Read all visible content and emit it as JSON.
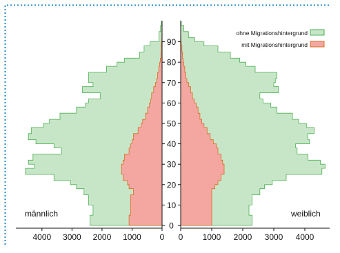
{
  "chart_data": {
    "type": "area",
    "title": "",
    "labels": {
      "left": "männlich",
      "right": "weiblich"
    },
    "age_axis": {
      "min": 0,
      "max": 100,
      "ticks": [
        0,
        10,
        20,
        30,
        40,
        50,
        60,
        70,
        80,
        90
      ]
    },
    "value_axis": {
      "min": 0,
      "max": 4800,
      "ticks_left": [
        4000,
        3000,
        2000,
        1000,
        0
      ],
      "ticks_right": [
        0,
        1000,
        2000,
        3000,
        4000
      ]
    },
    "legend": {
      "position": "top-right",
      "items": [
        {
          "name": "ohne Migrationshintergrund",
          "color": "#c7e6c8",
          "stroke": "#4caf50"
        },
        {
          "name": "mit Migrationshintergrund",
          "color": "#f4a7a1",
          "stroke": "#d76d22"
        }
      ]
    },
    "ages": [
      0,
      5,
      10,
      15,
      18,
      20,
      22,
      25,
      28,
      30,
      32,
      35,
      38,
      40,
      42,
      45,
      48,
      50,
      52,
      55,
      58,
      60,
      62,
      65,
      68,
      70,
      72,
      75,
      78,
      80,
      82,
      85,
      88,
      90,
      92,
      95,
      98,
      100
    ],
    "series": [
      {
        "name": "ohne Migrationshintergrund",
        "side": "male",
        "values": [
          2400,
          2300,
          2450,
          2600,
          2850,
          3050,
          3600,
          4550,
          4250,
          4450,
          4300,
          3350,
          3600,
          4200,
          4450,
          4350,
          3950,
          3750,
          3400,
          2850,
          2550,
          2450,
          2050,
          2650,
          2300,
          2450,
          2450,
          1850,
          1500,
          1250,
          750,
          600,
          400,
          100,
          100,
          50,
          20,
          0
        ]
      },
      {
        "name": "mit Migrationshintergrund",
        "side": "male",
        "values": [
          1100,
          1050,
          1050,
          950,
          1100,
          1150,
          1300,
          1350,
          1350,
          1300,
          1250,
          1100,
          1050,
          1000,
          950,
          800,
          700,
          650,
          550,
          480,
          420,
          380,
          350,
          280,
          220,
          180,
          150,
          110,
          80,
          60,
          40,
          30,
          20,
          10,
          5,
          5,
          0,
          0
        ]
      },
      {
        "name": "ohne Migrationshintergrund",
        "side": "female",
        "values": [
          2300,
          2200,
          2300,
          2550,
          2700,
          2950,
          3400,
          4550,
          4650,
          4500,
          4100,
          3750,
          3700,
          4150,
          4100,
          4300,
          4050,
          3800,
          3600,
          3100,
          2900,
          2650,
          2550,
          3150,
          3000,
          3050,
          3100,
          2400,
          2100,
          1900,
          1600,
          1200,
          750,
          450,
          250,
          100,
          20,
          0
        ]
      },
      {
        "name": "mit Migrationshintergrund",
        "side": "female",
        "values": [
          1000,
          1000,
          1000,
          1000,
          1100,
          1200,
          1300,
          1400,
          1400,
          1350,
          1300,
          1200,
          1150,
          1050,
          950,
          850,
          750,
          680,
          620,
          560,
          500,
          440,
          380,
          320,
          260,
          200,
          170,
          130,
          100,
          80,
          60,
          40,
          20,
          10,
          5,
          5,
          0,
          0
        ]
      }
    ]
  }
}
